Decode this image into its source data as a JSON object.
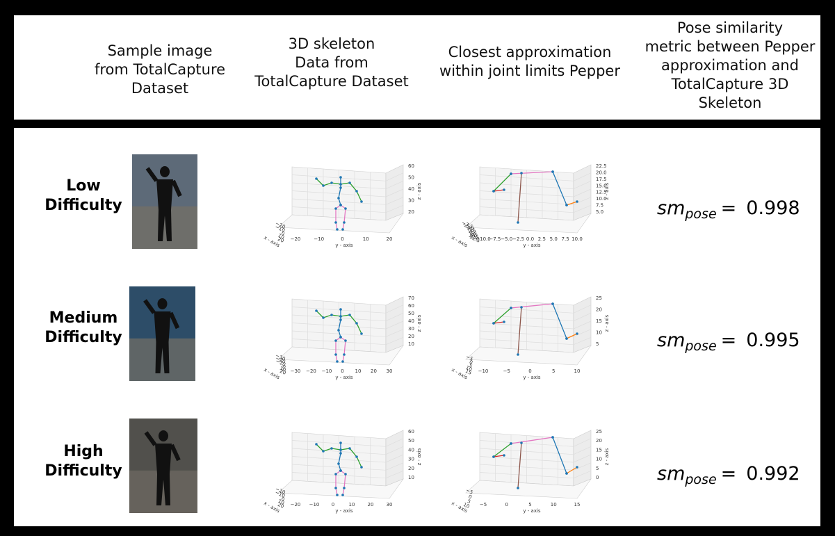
{
  "header": {
    "columns": [
      {
        "lines": [
          "Sample image",
          "from TotalCapture",
          "Dataset"
        ]
      },
      {
        "lines": [
          "3D skeleton",
          "Data from",
          "TotalCapture Dataset"
        ]
      },
      {
        "lines": [
          "Closest approximation",
          "within joint limits Pepper"
        ]
      },
      {
        "lines": [
          "Pose similarity",
          "metric between Pepper",
          "approximation and",
          "TotalCapture 3D",
          "Skeleton"
        ]
      }
    ]
  },
  "metric": {
    "symbol": "sm",
    "subscript": "pose",
    "relation": "="
  },
  "rows": [
    {
      "label_lines": [
        "Low",
        "Difficulty"
      ],
      "value": "0.998",
      "skeleton_plot": {
        "x_label": "x - axis",
        "y_label": "y - axis",
        "z_label": "z - axis",
        "x_ticks": [
          "−20",
          "−10",
          "0",
          "10",
          "20"
        ],
        "y_ticks": [
          "−20",
          "−10",
          "0",
          "10",
          "20"
        ],
        "z_ticks": [
          "20",
          "30",
          "40",
          "50",
          "60"
        ]
      },
      "pepper_plot": {
        "x_label": "x - axis",
        "y_label": "y - axis",
        "z_label": "z - axis",
        "x_ticks": [
          "−7.5",
          "−5.0",
          "−2.5",
          "0.0",
          "2.5",
          "5.0",
          "7.5",
          "10.0",
          "12.5"
        ],
        "y_ticks": [
          "−10.0",
          "−7.5",
          "−5.0",
          "−2.5",
          "0.0",
          "2.5",
          "5.0",
          "7.5",
          "10.0"
        ],
        "z_ticks": [
          "5.0",
          "7.5",
          "10.0",
          "12.5",
          "15.0",
          "17.5",
          "20.0",
          "22.5"
        ]
      }
    },
    {
      "label_lines": [
        "Medium",
        "Difficulty"
      ],
      "value": "0.995",
      "skeleton_plot": {
        "x_label": "x - axis",
        "y_label": "y - axis",
        "z_label": "z - axis",
        "x_ticks": [
          "−30",
          "−20",
          "−10",
          "0",
          "10",
          "20"
        ],
        "y_ticks": [
          "−30",
          "−20",
          "−10",
          "0",
          "10",
          "20",
          "30"
        ],
        "z_ticks": [
          "10",
          "20",
          "30",
          "40",
          "50",
          "60",
          "70"
        ]
      },
      "pepper_plot": {
        "x_label": "x - axis",
        "y_label": "y - axis",
        "z_label": "z - axis",
        "x_ticks": [
          "−5",
          "0",
          "5",
          "10",
          "15"
        ],
        "y_ticks": [
          "−10",
          "−5",
          "0",
          "5",
          "10"
        ],
        "z_ticks": [
          "5",
          "10",
          "15",
          "20",
          "25"
        ]
      }
    },
    {
      "label_lines": [
        "High",
        "Difficulty"
      ],
      "value": "0.992",
      "skeleton_plot": {
        "x_label": "x - axis",
        "y_label": "y - axis",
        "z_label": "z - axis",
        "x_ticks": [
          "−20",
          "−10",
          "0",
          "10",
          "20"
        ],
        "y_ticks": [
          "−20",
          "−10",
          "0",
          "10",
          "20",
          "30"
        ],
        "z_ticks": [
          "10",
          "20",
          "30",
          "40",
          "50",
          "60"
        ]
      },
      "pepper_plot": {
        "x_label": "x - axis",
        "y_label": "y - axis",
        "z_label": "z - axis",
        "x_ticks": [
          "−5",
          "0",
          "5",
          "10"
        ],
        "y_ticks": [
          "−5",
          "0",
          "5",
          "10",
          "15"
        ],
        "z_ticks": [
          "0",
          "5",
          "10",
          "15",
          "20",
          "25"
        ]
      }
    }
  ]
}
